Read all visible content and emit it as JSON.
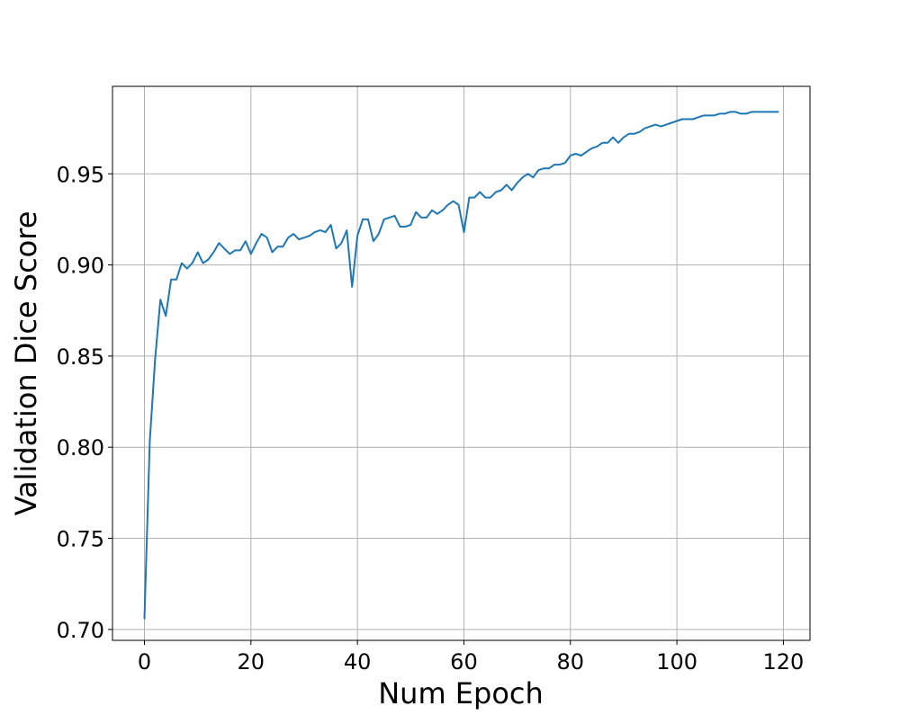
{
  "chart_data": {
    "type": "line",
    "title": "",
    "xlabel": "Num Epoch",
    "ylabel": "Validation Dice Score",
    "xlim": [
      -6,
      125
    ],
    "ylim": [
      0.694,
      0.998
    ],
    "x_ticks": [
      0,
      20,
      40,
      60,
      80,
      100,
      120
    ],
    "x_tick_labels": [
      "0",
      "20",
      "40",
      "60",
      "80",
      "100",
      "120"
    ],
    "y_ticks": [
      0.7,
      0.75,
      0.8,
      0.85,
      0.9,
      0.95
    ],
    "y_tick_labels": [
      "0.70",
      "0.75",
      "0.80",
      "0.85",
      "0.90",
      "0.95"
    ],
    "grid": true,
    "colors": {
      "line": "#1f77b4",
      "grid": "#b0b0b0",
      "frame": "#000000"
    },
    "series": [
      {
        "color": "#1f77b4",
        "x": [
          0,
          1,
          2,
          3,
          4,
          5,
          6,
          7,
          8,
          9,
          10,
          11,
          12,
          13,
          14,
          15,
          16,
          17,
          18,
          19,
          20,
          21,
          22,
          23,
          24,
          25,
          26,
          27,
          28,
          29,
          30,
          31,
          32,
          33,
          34,
          35,
          36,
          37,
          38,
          39,
          40,
          41,
          42,
          43,
          44,
          45,
          46,
          47,
          48,
          49,
          50,
          51,
          52,
          53,
          54,
          55,
          56,
          57,
          58,
          59,
          60,
          61,
          62,
          63,
          64,
          65,
          66,
          67,
          68,
          69,
          70,
          71,
          72,
          73,
          74,
          75,
          76,
          77,
          78,
          79,
          80,
          81,
          82,
          83,
          84,
          85,
          86,
          87,
          88,
          89,
          90,
          91,
          92,
          93,
          94,
          95,
          96,
          97,
          98,
          99,
          100,
          101,
          102,
          103,
          104,
          105,
          106,
          107,
          108,
          109,
          110,
          111,
          112,
          113,
          114,
          115,
          116,
          117,
          118,
          119
        ],
        "y": [
          0.706,
          0.803,
          0.848,
          0.881,
          0.872,
          0.892,
          0.892,
          0.901,
          0.898,
          0.901,
          0.907,
          0.901,
          0.903,
          0.907,
          0.912,
          0.909,
          0.906,
          0.908,
          0.908,
          0.913,
          0.906,
          0.912,
          0.917,
          0.915,
          0.907,
          0.91,
          0.91,
          0.915,
          0.917,
          0.914,
          0.915,
          0.916,
          0.918,
          0.919,
          0.918,
          0.922,
          0.909,
          0.912,
          0.919,
          0.888,
          0.916,
          0.925,
          0.925,
          0.913,
          0.917,
          0.925,
          0.926,
          0.927,
          0.921,
          0.921,
          0.922,
          0.929,
          0.926,
          0.926,
          0.93,
          0.928,
          0.93,
          0.933,
          0.935,
          0.933,
          0.918,
          0.937,
          0.937,
          0.94,
          0.937,
          0.937,
          0.94,
          0.941,
          0.944,
          0.941,
          0.945,
          0.948,
          0.95,
          0.948,
          0.952,
          0.953,
          0.953,
          0.955,
          0.955,
          0.956,
          0.96,
          0.961,
          0.96,
          0.962,
          0.964,
          0.965,
          0.967,
          0.967,
          0.97,
          0.967,
          0.97,
          0.972,
          0.972,
          0.973,
          0.975,
          0.976,
          0.977,
          0.976,
          0.977,
          0.978,
          0.979,
          0.98,
          0.98,
          0.98,
          0.981,
          0.982,
          0.982,
          0.982,
          0.983,
          0.983,
          0.984,
          0.984,
          0.983,
          0.983,
          0.984,
          0.984,
          0.984,
          0.984,
          0.984,
          0.984
        ]
      }
    ]
  }
}
